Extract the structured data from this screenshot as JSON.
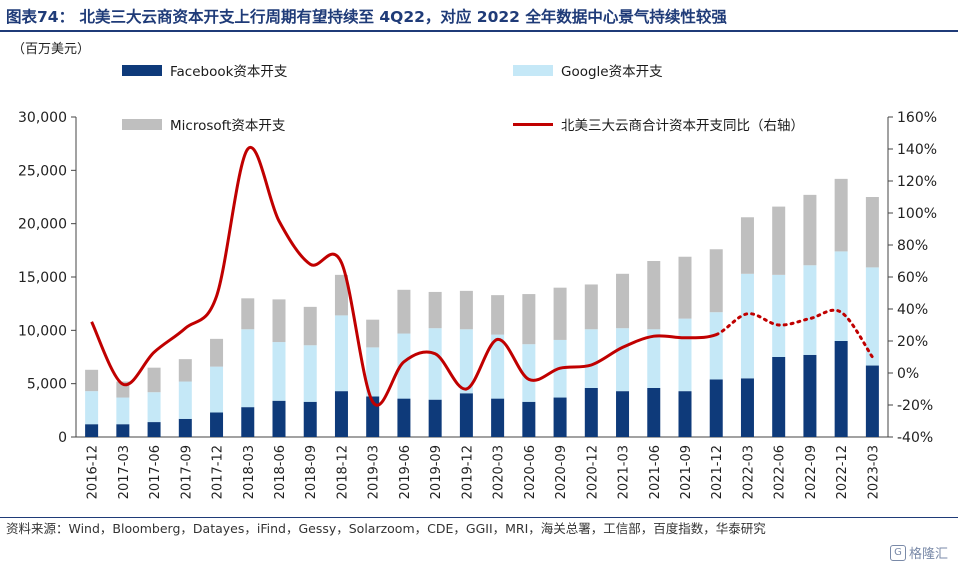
{
  "title": "图表74：  北美三大云商资本开支上行周期有望持续至 4Q22，对应 2022 全年数据中心景气持续性较强",
  "unit_label": "（百万美元）",
  "source_text": "资料来源：Wind，Bloomberg，Datayes，iFind，Gessy，Solarzoom，CDE，GGII，MRI，海关总署，工信部，百度指数，华泰研究",
  "watermark": "格隆汇",
  "colors": {
    "facebook": "#0e3a7a",
    "google": "#c5e8f7",
    "microsoft": "#bfbfbf",
    "yoy": "#c00000"
  },
  "chart_data": {
    "type": "bar",
    "stacked": true,
    "categories": [
      "2016-12",
      "2017-03",
      "2017-06",
      "2017-09",
      "2017-12",
      "2018-03",
      "2018-06",
      "2018-09",
      "2018-12",
      "2019-03",
      "2019-06",
      "2019-09",
      "2019-12",
      "2020-03",
      "2020-06",
      "2020-09",
      "2020-12",
      "2021-03",
      "2021-06",
      "2021-09",
      "2021-12",
      "2022-03",
      "2022-06",
      "2022-09",
      "2022-12",
      "2023-03"
    ],
    "series": [
      {
        "name": "Facebook资本开支",
        "values": [
          1200,
          1200,
          1400,
          1700,
          2300,
          2800,
          3400,
          3300,
          4300,
          3800,
          3600,
          3500,
          4100,
          3600,
          3300,
          3700,
          4600,
          4300,
          4600,
          4300,
          5400,
          5500,
          7500,
          7700,
          9000,
          6700
        ]
      },
      {
        "name": "Google资本开支",
        "values": [
          3100,
          2500,
          2800,
          3500,
          4300,
          7300,
          5500,
          5300,
          7100,
          4600,
          6100,
          6700,
          6000,
          6000,
          5400,
          5400,
          5500,
          5900,
          5500,
          6800,
          6300,
          9800,
          7700,
          8400,
          8400,
          9200
        ]
      },
      {
        "name": "Microsoft资本开支",
        "values": [
          2000,
          1500,
          2300,
          2100,
          2600,
          2900,
          4000,
          3600,
          3800,
          2600,
          4100,
          3400,
          3600,
          3700,
          4700,
          4900,
          4200,
          5100,
          6400,
          5800,
          5900,
          5300,
          6400,
          6600,
          6800,
          6600
        ]
      }
    ],
    "line_series": {
      "name": "北美三大云商合计资本开支同比（右轴）",
      "axis": "right",
      "values": [
        32,
        -7,
        13,
        28,
        48,
        140,
        95,
        68,
        69,
        -18,
        7,
        12,
        -10,
        21,
        -4,
        3,
        5,
        16,
        23,
        22,
        24,
        37,
        30,
        34,
        38,
        10
      ],
      "dotted_from_index": 21
    },
    "y_left": {
      "min": 0,
      "max": 30000,
      "ticks": [
        "0",
        "5,000",
        "10,000",
        "15,000",
        "20,000",
        "25,000",
        "30,000"
      ]
    },
    "y_right": {
      "min": -40,
      "max": 160,
      "ticks": [
        "-40%",
        "-20%",
        "0%",
        "20%",
        "40%",
        "60%",
        "80%",
        "100%",
        "120%",
        "140%",
        "160%"
      ]
    },
    "legend": [
      {
        "label": "Facebook资本开支"
      },
      {
        "label": "Google资本开支"
      },
      {
        "label": "Microsoft资本开支"
      },
      {
        "label": "北美三大云商合计资本开支同比（右轴）"
      }
    ]
  }
}
